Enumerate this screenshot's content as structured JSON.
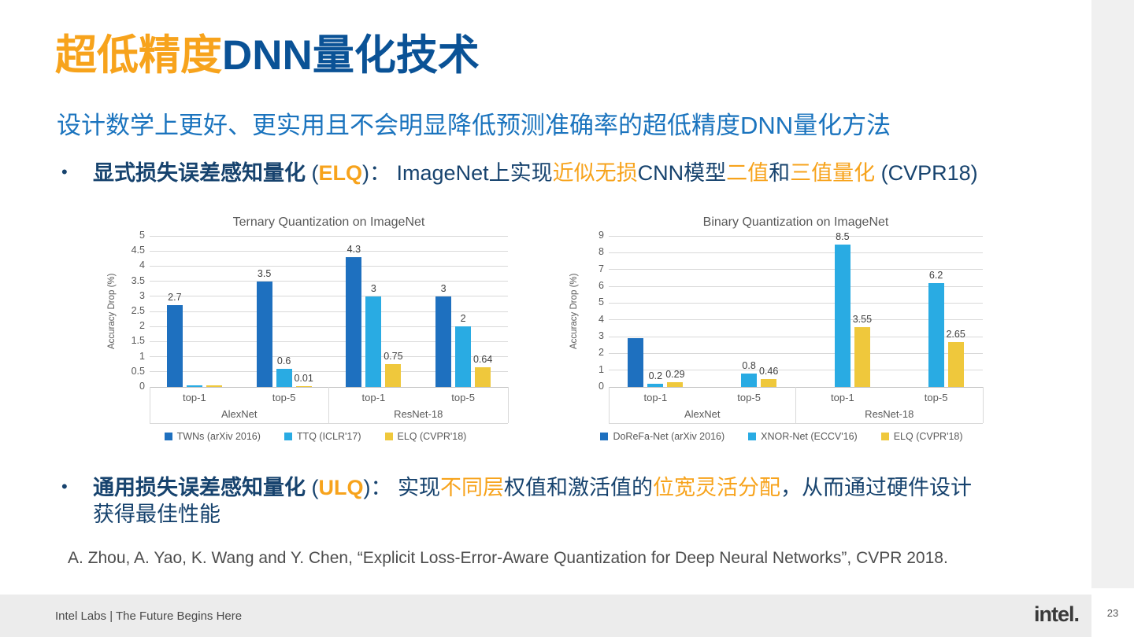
{
  "slide": {
    "title": {
      "highlight": "超低精度",
      "rest": "DNN量化技术"
    },
    "subtitle": "设计数学上更好、更实用且不会明显降低预测准确率的超低精度DNN量化方法",
    "bullets": [
      {
        "marker": "•",
        "segments": [
          {
            "t": "显式损失误差感知量化 ",
            "c": "navy",
            "b": true
          },
          {
            "t": "(",
            "c": "navy"
          },
          {
            "t": "ELQ",
            "c": "orange",
            "b": true
          },
          {
            "t": ")： ",
            "c": "navy"
          },
          {
            "t": "ImageNet上实现",
            "c": "navy"
          },
          {
            "t": "近似无损",
            "c": "orange"
          },
          {
            "t": "CNN模型",
            "c": "navy"
          },
          {
            "t": "二值",
            "c": "orange"
          },
          {
            "t": "和",
            "c": "navy"
          },
          {
            "t": "三值量化",
            "c": "orange"
          },
          {
            "t": " (CVPR18)",
            "c": "navy"
          }
        ]
      },
      {
        "marker": "•",
        "segments": [
          {
            "t": "通用损失误差感知量化 ",
            "c": "navy",
            "b": true
          },
          {
            "t": "(",
            "c": "navy"
          },
          {
            "t": "ULQ",
            "c": "orange",
            "b": true
          },
          {
            "t": ")： ",
            "c": "navy"
          },
          {
            "t": "实现",
            "c": "navy"
          },
          {
            "t": "不同层",
            "c": "orange"
          },
          {
            "t": "权值和激活值的",
            "c": "navy"
          },
          {
            "t": "位宽灵活分配",
            "c": "orange"
          },
          {
            "t": "，从而通过硬件设计\n获得最佳性能",
            "c": "navy"
          }
        ]
      }
    ],
    "citation": "A. Zhou, A. Yao, K. Wang and Y. Chen, “Explicit Loss-Error-Aware Quantization for Deep Neural Networks”, CVPR 2018.",
    "footer": {
      "left": "Intel Labs | The Future Begins Here",
      "logo": "intel.",
      "page": "23"
    }
  },
  "colors": {
    "orange": "#F7A31C",
    "title_blue": "#0A5296",
    "subtitle_blue": "#1B74BE",
    "navy": "#17436E",
    "chart_text": "#595959",
    "label_text": "#404040",
    "grid": "#D9D9D9",
    "axis": "#BFBFBF",
    "citation_gray": "#4D4D4D",
    "footer_bg": "#ECECEC",
    "footer_text": "#4A4A4A",
    "band_bg": "#F0F0F0",
    "logo_color": "#3A3A3A",
    "page_text": "#595959",
    "series": [
      "#1E70BF",
      "#29ABE3",
      "#EFC83C"
    ]
  },
  "chart_data": [
    {
      "type": "bar",
      "title": "Ternary Quantization on ImageNet",
      "ylabel": "Accuracy Drop (%)",
      "ylim": [
        0,
        5
      ],
      "ytick_step": 0.5,
      "grid": true,
      "legend_position": "bottom",
      "categories": [
        "top-1",
        "top-5",
        "top-1",
        "top-5"
      ],
      "category_groups": [
        {
          "label": "AlexNet",
          "span": 2
        },
        {
          "label": "ResNet-18",
          "span": 2
        }
      ],
      "series": [
        {
          "name": "TWNs (arXiv 2016)",
          "values": [
            2.7,
            3.5,
            4.3,
            3
          ],
          "labels": [
            "2.7",
            "3.5",
            "4.3",
            "3"
          ]
        },
        {
          "name": "TTQ (ICLR'17)",
          "values": [
            0.05,
            0.6,
            3,
            2
          ],
          "labels": [
            "",
            "0.6",
            "3",
            "2"
          ]
        },
        {
          "name": "ELQ (CVPR'18)",
          "values": [
            0.04,
            0.01,
            0.75,
            0.64
          ],
          "labels": [
            "",
            "0.01",
            "0.75",
            "0.64"
          ]
        }
      ]
    },
    {
      "type": "bar",
      "title": "Binary Quantization on ImageNet",
      "ylabel": "Accuracy Drop (%)",
      "ylim": [
        0,
        9
      ],
      "ytick_step": 1,
      "grid": true,
      "legend_position": "bottom",
      "categories": [
        "top-1",
        "top-5",
        "top-1",
        "top-5"
      ],
      "category_groups": [
        {
          "label": "AlexNet",
          "span": 2
        },
        {
          "label": "ResNet-18",
          "span": 2
        }
      ],
      "series": [
        {
          "name": "DoReFa-Net (arXiv 2016)",
          "values": [
            2.9,
            null,
            null,
            null
          ],
          "labels": [
            "",
            "",
            "",
            ""
          ]
        },
        {
          "name": "XNOR-Net (ECCV'16)",
          "values": [
            0.2,
            0.8,
            8.5,
            6.2
          ],
          "labels": [
            "0.2",
            "0.8",
            "8.5",
            "6.2"
          ]
        },
        {
          "name": "ELQ (CVPR'18)",
          "values": [
            0.29,
            0.46,
            3.55,
            2.65
          ],
          "labels": [
            "0.29",
            "0.46",
            "3.55",
            "2.65"
          ]
        }
      ]
    }
  ]
}
